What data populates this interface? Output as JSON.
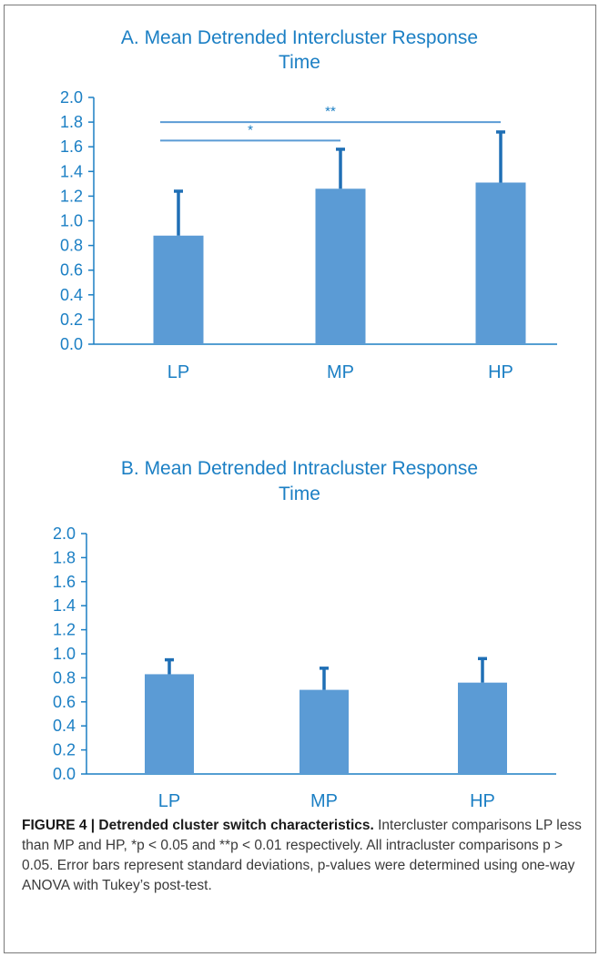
{
  "chart_data": [
    {
      "type": "bar",
      "title": "A. Mean Detrended Intercluster Response Time",
      "title_lines": [
        "A. Mean Detrended Intercluster Response",
        "Time"
      ],
      "categories": [
        "LP",
        "MP",
        "HP"
      ],
      "values": [
        0.88,
        1.26,
        1.31
      ],
      "error": [
        0.36,
        0.32,
        0.41
      ],
      "ylim": [
        0,
        2.0
      ],
      "yticks": [
        "0.0",
        "0.2",
        "0.4",
        "0.6",
        "0.8",
        "1.0",
        "1.2",
        "1.4",
        "1.6",
        "1.8",
        "2.0"
      ],
      "xlabel": "",
      "ylabel": "",
      "grid": false,
      "significance": [
        {
          "from": "LP",
          "to": "MP",
          "label": "*",
          "y": 1.65
        },
        {
          "from": "LP",
          "to": "HP",
          "label": "**",
          "y": 1.8
        }
      ],
      "colors": {
        "bar": "#5b9bd5",
        "error": "#1f6fb5",
        "axis": "#1b7fc4",
        "text": "#1b7fc4"
      }
    },
    {
      "type": "bar",
      "title": "B. Mean Detrended Intracluster Response Time",
      "title_lines": [
        "B. Mean Detrended Intracluster Response",
        "Time"
      ],
      "categories": [
        "LP",
        "MP",
        "HP"
      ],
      "values": [
        0.83,
        0.7,
        0.76
      ],
      "error": [
        0.12,
        0.18,
        0.2
      ],
      "ylim": [
        0,
        2.0
      ],
      "yticks": [
        "0.0",
        "0.2",
        "0.4",
        "0.6",
        "0.8",
        "1.0",
        "1.2",
        "1.4",
        "1.6",
        "1.8",
        "2.0"
      ],
      "xlabel": "",
      "ylabel": "",
      "grid": false,
      "significance": [],
      "colors": {
        "bar": "#5b9bd5",
        "error": "#1f6fb5",
        "axis": "#1b7fc4",
        "text": "#1b7fc4"
      }
    }
  ],
  "caption": {
    "heading": "FIGURE 4 | Detrended cluster switch characteristics.",
    "text": " Intercluster comparisons LP less than MP and HP, *p < 0.05 and **p < 0.01 respectively. All intracluster comparisons p > 0.05. Error bars represent standard deviations, p-values were determined using one-way ANOVA with Tukey’s post-test."
  }
}
